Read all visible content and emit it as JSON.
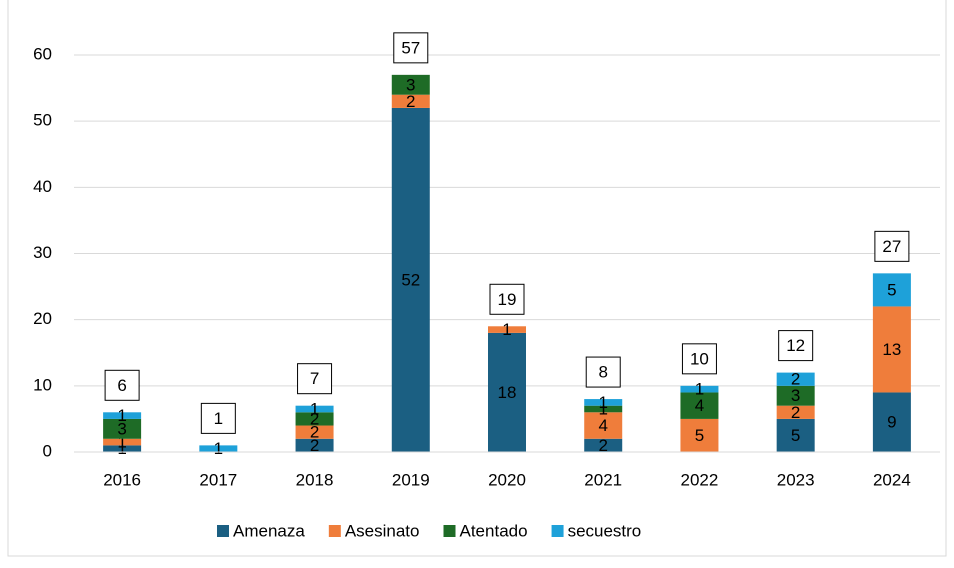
{
  "chart_data": {
    "type": "stacked_bar",
    "categories": [
      "2016",
      "2017",
      "2018",
      "2019",
      "2020",
      "2021",
      "2022",
      "2023",
      "2024"
    ],
    "series": [
      {
        "name": "Amenaza",
        "color": "#1b5f82",
        "values": [
          1,
          null,
          2,
          52,
          18,
          2,
          null,
          5,
          9
        ]
      },
      {
        "name": "Asesinato",
        "color": "#ef7d3b",
        "values": [
          1,
          null,
          2,
          2,
          1,
          4,
          5,
          2,
          13
        ]
      },
      {
        "name": "Atentado",
        "color": "#1e6b26",
        "values": [
          3,
          null,
          2,
          3,
          null,
          1,
          4,
          3,
          null
        ]
      },
      {
        "name": "secuestro",
        "color": "#1ea1d9",
        "values": [
          1,
          1,
          1,
          null,
          null,
          1,
          1,
          2,
          5
        ]
      }
    ],
    "totals": [
      6,
      1,
      7,
      57,
      19,
      8,
      10,
      12,
      27
    ],
    "ylim": [
      0,
      60
    ],
    "yticks": [
      0,
      10,
      20,
      30,
      40,
      50,
      60
    ],
    "grid": true,
    "legend": "bottom"
  }
}
